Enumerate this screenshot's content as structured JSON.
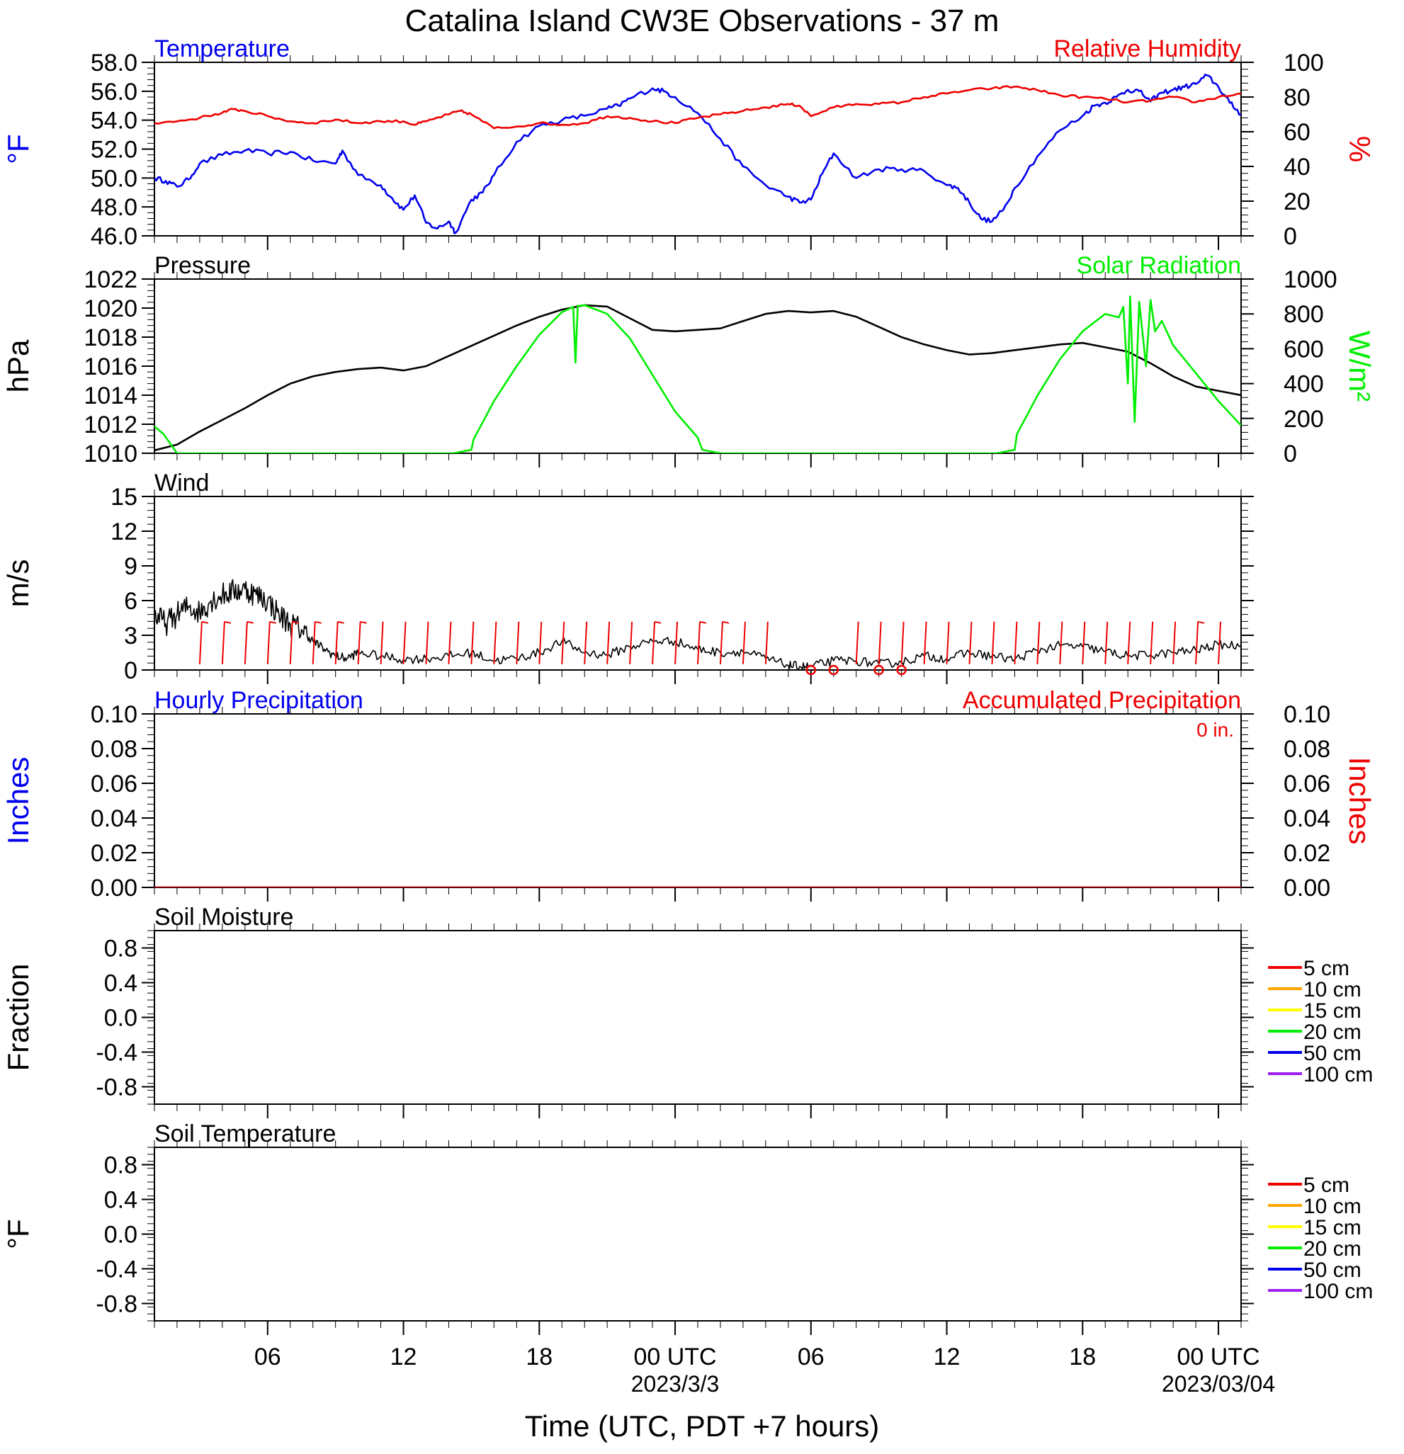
{
  "title": "Catalina Island CW3E Observations - 37 m",
  "xlabel": "Time (UTC, PDT +7 hours)",
  "time_axis": {
    "range_hours": [
      0,
      48
    ],
    "ticks": [
      {
        "label": "06",
        "hour": 5
      },
      {
        "label": "12",
        "hour": 11
      },
      {
        "label": "18",
        "hour": 17
      },
      {
        "label": "00 UTC",
        "hour": 23,
        "date": "2023/3/3"
      },
      {
        "label": "06",
        "hour": 29
      },
      {
        "label": "12",
        "hour": 35
      },
      {
        "label": "18",
        "hour": 41
      },
      {
        "label": "00 UTC",
        "hour": 47,
        "date": "2023/03/04"
      }
    ]
  },
  "colors": {
    "temperature": "#0000ee",
    "humidity": "#ee0000",
    "pressure": "#000000",
    "solar": "#00ee00",
    "wind": "#000000",
    "barb": "#ee0000",
    "hourly_precip": "#0000ee",
    "accum_precip": "#ee0000"
  },
  "chart_data": [
    {
      "type": "line",
      "name": "temp_rh",
      "left_title": "Temperature",
      "right_title": "Relative Humidity",
      "ylabel_left": "°F",
      "ylabel_right": "%",
      "ylim_left": [
        46,
        58
      ],
      "ylim_right": [
        0,
        100
      ],
      "yticks_left": [
        "46.0",
        "48.0",
        "50.0",
        "52.0",
        "54.0",
        "56.0",
        "58.0"
      ],
      "yticks_right": [
        "0",
        "20",
        "40",
        "60",
        "80",
        "100"
      ],
      "series": [
        {
          "name": "Temperature",
          "axis": "left",
          "x": [
            0,
            0.5,
            1,
            1.5,
            2,
            3,
            4,
            5,
            6,
            7,
            8,
            8.3,
            9,
            10,
            10.5,
            11,
            11.5,
            12,
            12.5,
            13,
            13.3,
            14,
            14.5,
            15,
            16,
            17,
            18,
            19,
            20,
            20.5,
            21,
            22,
            22.5,
            23,
            24,
            25,
            26,
            27,
            28,
            28.5,
            29,
            29.5,
            30,
            31,
            32,
            33,
            34,
            35,
            35.5,
            36,
            36.5,
            37,
            37.5,
            38,
            39,
            40,
            41,
            41.5,
            42,
            42.5,
            43,
            43.5,
            44,
            44.5,
            45,
            45.5,
            46,
            46.5,
            47,
            47.5,
            48
          ],
          "values": [
            50.0,
            49.8,
            49.4,
            49.9,
            51.0,
            51.6,
            51.9,
            51.7,
            51.8,
            51.2,
            51.0,
            51.9,
            50.2,
            49.5,
            48.6,
            47.8,
            48.8,
            46.9,
            46.5,
            47.0,
            46.2,
            48.5,
            49.0,
            50.2,
            52.5,
            53.6,
            54.0,
            54.3,
            54.8,
            55.0,
            55.5,
            56.2,
            56.0,
            55.6,
            54.5,
            52.7,
            50.8,
            49.5,
            48.7,
            48.3,
            48.5,
            50.3,
            51.7,
            50.0,
            50.6,
            50.6,
            50.5,
            49.5,
            49.3,
            48.3,
            47.2,
            47.0,
            47.8,
            49.3,
            51.5,
            53.3,
            54.3,
            55.0,
            55.2,
            55.6,
            56.1,
            56.0,
            55.3,
            55.9,
            56.1,
            56.3,
            56.5,
            57.1,
            56.3,
            55.2,
            54.4
          ]
        },
        {
          "name": "Relative Humidity",
          "axis": "right",
          "x": [
            0,
            1,
            2,
            3,
            3.5,
            4,
            5,
            6,
            7,
            8,
            9,
            10,
            11,
            11.5,
            12,
            13,
            13.5,
            14,
            15,
            16,
            17,
            18,
            19,
            20,
            21,
            22,
            23,
            24,
            25,
            26,
            27,
            28,
            28.5,
            29,
            30,
            31,
            32,
            33,
            34,
            35,
            36,
            37,
            38,
            39,
            40,
            41,
            42,
            43,
            44,
            45,
            46,
            47,
            48
          ],
          "values": [
            65,
            66,
            68,
            71,
            73,
            72,
            69,
            66,
            65,
            67,
            65,
            66,
            66,
            64,
            66,
            70,
            72,
            70,
            62,
            63,
            65,
            64,
            65,
            69,
            68,
            66,
            65,
            68,
            70,
            72,
            74,
            76,
            75,
            69,
            74,
            76,
            76,
            77,
            80,
            82,
            84,
            85,
            86,
            84,
            81,
            80,
            79,
            77,
            78,
            80,
            77,
            80,
            82
          ]
        }
      ]
    },
    {
      "type": "line",
      "name": "pressure_solar",
      "left_title": "Pressure",
      "right_title": "Solar Radiation",
      "ylabel_left": "hPa",
      "ylabel_right": "W/m²",
      "ylim_left": [
        1010,
        1022
      ],
      "ylim_right": [
        0,
        1000
      ],
      "yticks_left": [
        "1010",
        "1012",
        "1014",
        "1016",
        "1018",
        "1020",
        "1022"
      ],
      "yticks_right": [
        "0",
        "200",
        "400",
        "600",
        "800",
        "1000"
      ],
      "series": [
        {
          "name": "Pressure",
          "axis": "left",
          "x": [
            0,
            1,
            2,
            3,
            4,
            5,
            6,
            7,
            8,
            9,
            10,
            11,
            12,
            13,
            14,
            15,
            16,
            17,
            18,
            19,
            20,
            21,
            22,
            23,
            24,
            25,
            26,
            27,
            28,
            29,
            30,
            31,
            32,
            33,
            34,
            35,
            36,
            37,
            38,
            39,
            40,
            41,
            42,
            43,
            44,
            45,
            46,
            47,
            48
          ],
          "values": [
            1010.2,
            1010.6,
            1011.5,
            1012.3,
            1013.1,
            1014.0,
            1014.8,
            1015.3,
            1015.6,
            1015.8,
            1015.9,
            1015.7,
            1016.0,
            1016.7,
            1017.4,
            1018.1,
            1018.8,
            1019.4,
            1019.9,
            1020.2,
            1020.1,
            1019.3,
            1018.5,
            1018.4,
            1018.5,
            1018.6,
            1019.1,
            1019.6,
            1019.8,
            1019.7,
            1019.8,
            1019.4,
            1018.7,
            1018.0,
            1017.5,
            1017.1,
            1016.8,
            1016.9,
            1017.1,
            1017.3,
            1017.5,
            1017.6,
            1017.3,
            1017.0,
            1016.2,
            1015.3,
            1014.6,
            1014.3,
            1014.0
          ]
        },
        {
          "name": "Solar Radiation",
          "axis": "right",
          "x": [
            0,
            0.4,
            1,
            13.2,
            14,
            14.1,
            15,
            16,
            17,
            18,
            18.5,
            18.6,
            18.7,
            19,
            20,
            21,
            22,
            23,
            24,
            24.2,
            25,
            37.2,
            38,
            38.1,
            39,
            40,
            41,
            42,
            42.6,
            42.8,
            43,
            43.1,
            43.3,
            43.5,
            43.8,
            44,
            44.2,
            44.5,
            45,
            46,
            47,
            48
          ],
          "values": [
            155,
            110,
            0,
            0,
            20,
            80,
            300,
            500,
            680,
            810,
            840,
            520,
            845,
            850,
            800,
            660,
            450,
            240,
            90,
            20,
            0,
            0,
            20,
            110,
            330,
            540,
            700,
            800,
            780,
            840,
            400,
            900,
            180,
            870,
            500,
            880,
            700,
            760,
            620,
            460,
            300,
            160
          ]
        }
      ]
    },
    {
      "type": "line",
      "name": "wind",
      "left_title": "Wind",
      "ylabel_left": "m/s",
      "ylim_left": [
        0,
        15
      ],
      "yticks_left": [
        "0",
        "3",
        "6",
        "9",
        "12",
        "15"
      ],
      "series": [
        {
          "name": "Wind",
          "axis": "left",
          "x": [
            0,
            0.5,
            1,
            1.5,
            2,
            2.5,
            3,
            3.5,
            4,
            4.5,
            5,
            5.5,
            6,
            6.5,
            7,
            7.5,
            8,
            8.5,
            9,
            10,
            11,
            12,
            13,
            14,
            15,
            16,
            17,
            18,
            19,
            20,
            21,
            22,
            23,
            24,
            25,
            26,
            27,
            28,
            28.5,
            29,
            30,
            31,
            32,
            33,
            34,
            35,
            36,
            37,
            38,
            39,
            40,
            41,
            42,
            43,
            44,
            45,
            46,
            47,
            48
          ],
          "values": [
            4.8,
            4.0,
            4.8,
            5.5,
            5.0,
            6.0,
            6.5,
            6.8,
            7.0,
            6.5,
            6.0,
            4.8,
            4.0,
            3.5,
            2.5,
            1.8,
            1.2,
            1.0,
            1.5,
            1.2,
            0.9,
            1.0,
            1.2,
            1.5,
            0.8,
            1.0,
            1.5,
            2.5,
            1.5,
            1.3,
            2.0,
            2.5,
            2.5,
            1.8,
            1.5,
            1.6,
            1.0,
            0.4,
            0.3,
            0.3,
            0.8,
            0.8,
            0.5,
            0.7,
            1.2,
            1.0,
            1.5,
            1.2,
            0.9,
            1.7,
            2.1,
            2.0,
            1.6,
            1.2,
            1.3,
            1.5,
            1.7,
            2.2,
            2.1
          ]
        }
      ],
      "barb_hours": [
        2,
        3,
        4,
        5,
        6,
        7,
        8,
        9,
        10,
        11,
        12,
        13,
        14,
        15,
        16,
        17,
        18,
        19,
        20,
        21,
        22,
        23,
        24,
        25,
        26,
        27,
        31,
        32,
        33,
        34,
        35,
        36,
        37,
        38,
        39,
        40,
        41,
        42,
        43,
        44,
        45,
        46,
        47
      ],
      "calm_hours": [
        29,
        30,
        32,
        33
      ]
    },
    {
      "type": "line",
      "name": "precipitation",
      "left_title": "Hourly Precipitation",
      "right_title": "Accumulated Precipitation",
      "annotation": "0 in.",
      "ylabel_left": "Inches",
      "ylabel_right": "Inches",
      "ylim_left": [
        0,
        0.1
      ],
      "ylim_right": [
        0,
        0.1
      ],
      "yticks_left": [
        "0.00",
        "0.02",
        "0.04",
        "0.06",
        "0.08",
        "0.10"
      ],
      "yticks_right": [
        "0.00",
        "0.02",
        "0.04",
        "0.06",
        "0.08",
        "0.10"
      ],
      "series": [
        {
          "name": "Hourly Precipitation",
          "axis": "left",
          "x": [
            0,
            48
          ],
          "values": [
            0,
            0
          ]
        },
        {
          "name": "Accumulated Precipitation",
          "axis": "right",
          "x": [
            0,
            48
          ],
          "values": [
            0,
            0
          ]
        }
      ]
    },
    {
      "type": "line",
      "name": "soil_moisture",
      "left_title": "Soil Moisture",
      "ylabel_left": "Fraction",
      "ylim_left": [
        -1,
        1
      ],
      "yticks_left": [
        "-0.8",
        "-0.4",
        "0.0",
        "0.4",
        "0.8"
      ],
      "series": [],
      "legend": [
        {
          "label": "5 cm",
          "color": "#ee0000"
        },
        {
          "label": "10 cm",
          "color": "#ffa500"
        },
        {
          "label": "15 cm",
          "color": "#ffff00"
        },
        {
          "label": "20 cm",
          "color": "#00ee00"
        },
        {
          "label": "50 cm",
          "color": "#0000ee"
        },
        {
          "label": "100 cm",
          "color": "#a020f0"
        }
      ]
    },
    {
      "type": "line",
      "name": "soil_temperature",
      "left_title": "Soil Temperature",
      "ylabel_left": "°F",
      "ylim_left": [
        -1,
        1
      ],
      "yticks_left": [
        "-0.8",
        "-0.4",
        "0.0",
        "0.4",
        "0.8"
      ],
      "series": [],
      "legend": [
        {
          "label": "5 cm",
          "color": "#ee0000"
        },
        {
          "label": "10 cm",
          "color": "#ffa500"
        },
        {
          "label": "15 cm",
          "color": "#ffff00"
        },
        {
          "label": "20 cm",
          "color": "#00ee00"
        },
        {
          "label": "50 cm",
          "color": "#0000ee"
        },
        {
          "label": "100 cm",
          "color": "#a020f0"
        }
      ]
    }
  ]
}
